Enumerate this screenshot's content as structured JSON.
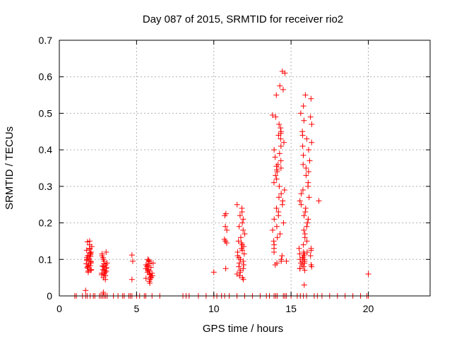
{
  "chart_data": {
    "type": "scatter",
    "title": "Day 087 of 2015, SRMTID for receiver rio2",
    "xlabel": "GPS time / hours",
    "ylabel": "SRMTID / TECUs",
    "xlim": [
      0,
      24
    ],
    "ylim": [
      0,
      0.7
    ],
    "xticks": [
      0,
      5,
      10,
      15,
      20
    ],
    "yticks": [
      0,
      0.1,
      0.2,
      0.3,
      0.4,
      0.5,
      0.6,
      0.7
    ],
    "grid": true,
    "marker": "+",
    "color": "#ff0000",
    "clusters": [
      {
        "x_center": 1.9,
        "x_spread": 0.2,
        "y_values": [
          0.15,
          0.148,
          0.14,
          0.135,
          0.13,
          0.128,
          0.125,
          0.12,
          0.118,
          0.115,
          0.112,
          0.11,
          0.108,
          0.105,
          0.102,
          0.1,
          0.098,
          0.095,
          0.093,
          0.09,
          0.088,
          0.085,
          0.083,
          0.08,
          0.078,
          0.075,
          0.072,
          0.07,
          0.068,
          0.065
        ]
      },
      {
        "x_center": 2.9,
        "x_spread": 0.2,
        "y_values": [
          0.12,
          0.115,
          0.11,
          0.105,
          0.1,
          0.095,
          0.09,
          0.088,
          0.085,
          0.082,
          0.08,
          0.078,
          0.075,
          0.072,
          0.07,
          0.068,
          0.065,
          0.062,
          0.06,
          0.058,
          0.055,
          0.05,
          0.045
        ]
      },
      {
        "x_center": 5.85,
        "x_spread": 0.25,
        "y_values": [
          0.1,
          0.098,
          0.095,
          0.093,
          0.09,
          0.088,
          0.085,
          0.083,
          0.08,
          0.078,
          0.075,
          0.073,
          0.07,
          0.068,
          0.065,
          0.062,
          0.06,
          0.058,
          0.055,
          0.052,
          0.05,
          0.048,
          0.045,
          0.04,
          0.035
        ]
      },
      {
        "x_center": 10.75,
        "x_spread": 0.1,
        "y_values": [
          0.225,
          0.22,
          0.19,
          0.18,
          0.155,
          0.15,
          0.145,
          0.075
        ]
      },
      {
        "x_center": 11.75,
        "x_spread": 0.25,
        "y_values": [
          0.25,
          0.24,
          0.23,
          0.22,
          0.21,
          0.2,
          0.19,
          0.18,
          0.17,
          0.16,
          0.15,
          0.145,
          0.14,
          0.135,
          0.13,
          0.125,
          0.12,
          0.115,
          0.11,
          0.105,
          0.1,
          0.095,
          0.09,
          0.085,
          0.08,
          0.075,
          0.07,
          0.065,
          0.06,
          0.055,
          0.05,
          0.045
        ]
      },
      {
        "x_center": 14.2,
        "x_spread": 0.4,
        "y_values": [
          0.615,
          0.61,
          0.575,
          0.565,
          0.55,
          0.495,
          0.49,
          0.47,
          0.46,
          0.45,
          0.445,
          0.44,
          0.43,
          0.42,
          0.41,
          0.4,
          0.39,
          0.38,
          0.37,
          0.36,
          0.355,
          0.35,
          0.345,
          0.34,
          0.33,
          0.32,
          0.31,
          0.3,
          0.29,
          0.28,
          0.27,
          0.26,
          0.25,
          0.24,
          0.23,
          0.22,
          0.21,
          0.2,
          0.19,
          0.18,
          0.17,
          0.16,
          0.15,
          0.14,
          0.13,
          0.12,
          0.11,
          0.1,
          0.095,
          0.09,
          0.085
        ]
      },
      {
        "x_center": 15.95,
        "x_spread": 0.4,
        "y_values": [
          0.55,
          0.54,
          0.52,
          0.5,
          0.49,
          0.48,
          0.47,
          0.45,
          0.44,
          0.43,
          0.42,
          0.41,
          0.4,
          0.385,
          0.37,
          0.36,
          0.35,
          0.34,
          0.33,
          0.31,
          0.3,
          0.29,
          0.28,
          0.27,
          0.26,
          0.25,
          0.24,
          0.23,
          0.22,
          0.21,
          0.2,
          0.19,
          0.18,
          0.17,
          0.16,
          0.15,
          0.14,
          0.13,
          0.125,
          0.12,
          0.115,
          0.11,
          0.105,
          0.1,
          0.095,
          0.09,
          0.085,
          0.08,
          0.075,
          0.07,
          0.03
        ]
      },
      {
        "x_center": 15.65,
        "x_spread": 0.2,
        "y_values": [
          0.13,
          0.12,
          0.115,
          0.11,
          0.105,
          0.1,
          0.095,
          0.09,
          0.085,
          0.08,
          0.075
        ]
      }
    ],
    "outliers": [
      {
        "x": 1.7,
        "y": 0.015
      },
      {
        "x": 4.7,
        "y": 0.112
      },
      {
        "x": 4.75,
        "y": 0.095
      },
      {
        "x": 4.7,
        "y": 0.045
      },
      {
        "x": 2.85,
        "y": 0.01
      },
      {
        "x": 10.0,
        "y": 0.065
      },
      {
        "x": 16.8,
        "y": 0.26
      },
      {
        "x": 14.7,
        "y": 0.095
      },
      {
        "x": 20.0,
        "y": 0.06
      }
    ],
    "zero_points_x": [
      1.0,
      1.1,
      1.5,
      1.7,
      1.8,
      2.0,
      2.2,
      2.3,
      2.6,
      2.7,
      2.8,
      2.9,
      3.0,
      3.1,
      3.5,
      3.8,
      4.1,
      4.2,
      4.5,
      4.6,
      4.7,
      5.0,
      5.2,
      5.5,
      5.6,
      6.0,
      6.5,
      8.0,
      8.2,
      8.4,
      9.0,
      9.5,
      10.0,
      10.2,
      10.5,
      10.7,
      11.0,
      11.5,
      12.0,
      12.5,
      13.0,
      13.4,
      13.6,
      13.9,
      14.0,
      14.1,
      14.5,
      14.6,
      14.7,
      15.0,
      15.4,
      15.6,
      15.8,
      16.0,
      16.5,
      16.7,
      17.0,
      17.5,
      18.0,
      18.5,
      19.0,
      19.5,
      19.9,
      20.0
    ]
  }
}
